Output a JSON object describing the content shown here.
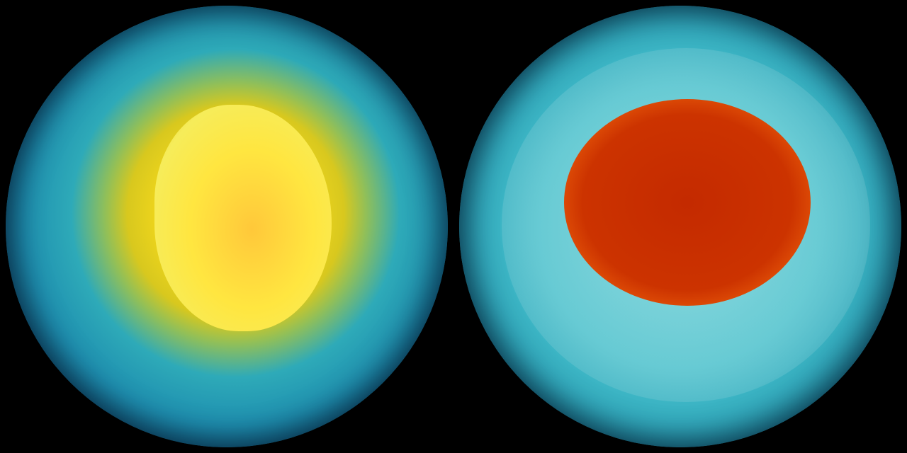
{
  "scene": {
    "globes": [
      {
        "name": "south-pole-globe",
        "colors": {
          "core": "#ffe033",
          "ring": "#d8c81e",
          "ocean": "#2eaab8",
          "edge": "#0b2f4c"
        }
      },
      {
        "name": "north-pole-globe",
        "colors": {
          "core": "#c42a00",
          "ring": "#ffe23a",
          "ocean": "#4cc4cf",
          "edge": "#0c3450"
        }
      }
    ],
    "background": "#000000"
  }
}
